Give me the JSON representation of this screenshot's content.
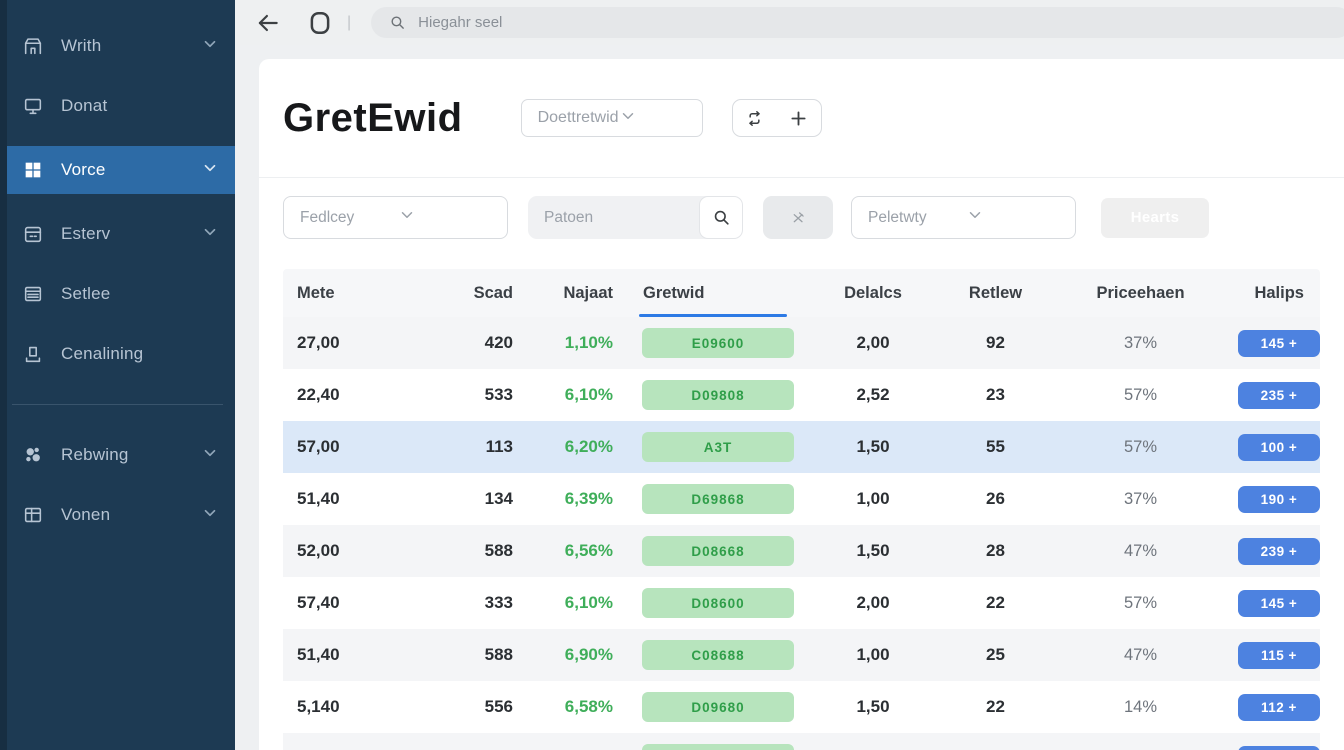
{
  "colors": {
    "sidebar_bg": "#1d3a53",
    "sidebar_active_bg": "#2d6ba6",
    "accent_blue": "#1766df",
    "pill_blue": "#4d82e0",
    "green_text": "#3fae5a",
    "green_badge_bg": "#b7e4bd",
    "selected_row_bg": "#dbe8f8",
    "tab_underline": "#2d7ae5"
  },
  "sidebar": {
    "items": [
      {
        "label": "Writh",
        "icon": "bank-icon",
        "chevron": true,
        "active": false
      },
      {
        "label": "Donat",
        "icon": "monitor-icon",
        "chevron": false,
        "active": false
      },
      {
        "label": "Vorce",
        "icon": "grid-icon",
        "chevron": true,
        "active": true
      },
      {
        "label": "Esterv",
        "icon": "calendar-icon",
        "chevron": true,
        "active": false
      },
      {
        "label": "Setlee",
        "icon": "card-icon",
        "chevron": false,
        "active": false
      },
      {
        "label": "Cenalining",
        "icon": "upload-icon",
        "chevron": false,
        "active": false
      },
      {
        "label": "Rebwing",
        "icon": "scatter-pie-icon",
        "chevron": true,
        "active": false
      },
      {
        "label": "Vonen",
        "icon": "table-icon",
        "chevron": true,
        "active": false
      }
    ]
  },
  "topbar": {
    "search_placeholder": "Hiegahr seel"
  },
  "header": {
    "title": "GretEwid",
    "selector_value": "Doettretwid"
  },
  "filters": {
    "select1_value": "Fedlcey",
    "search_placeholder": "Patoen",
    "select2_value": "Peletwty",
    "action_label": "Hearts"
  },
  "table": {
    "columns": [
      "Mete",
      "Scad",
      "Najaat",
      "Gretwid",
      "Delalcs",
      "Retlew",
      "Priceehaen",
      "Halips"
    ],
    "active_column": "Gretwid",
    "rows": [
      {
        "mete": "27,00",
        "scad": "420",
        "najaat": "1,10%",
        "gretwid": "E09600",
        "delalcs": "2,00",
        "retlew": "92",
        "priceehaen": "37%",
        "halips": "145 +",
        "selected": false
      },
      {
        "mete": "22,40",
        "scad": "533",
        "najaat": "6,10%",
        "gretwid": "D09808",
        "delalcs": "2,52",
        "retlew": "23",
        "priceehaen": "57%",
        "halips": "235 +",
        "selected": false
      },
      {
        "mete": "57,00",
        "scad": "113",
        "najaat": "6,20%",
        "gretwid": "A3T",
        "delalcs": "1,50",
        "retlew": "55",
        "priceehaen": "57%",
        "halips": "100 +",
        "selected": true
      },
      {
        "mete": "51,40",
        "scad": "134",
        "najaat": "6,39%",
        "gretwid": "D69868",
        "delalcs": "1,00",
        "retlew": "26",
        "priceehaen": "37%",
        "halips": "190 +",
        "selected": false
      },
      {
        "mete": "52,00",
        "scad": "588",
        "najaat": "6,56%",
        "gretwid": "D08668",
        "delalcs": "1,50",
        "retlew": "28",
        "priceehaen": "47%",
        "halips": "239 +",
        "selected": false
      },
      {
        "mete": "57,40",
        "scad": "333",
        "najaat": "6,10%",
        "gretwid": "D08600",
        "delalcs": "2,00",
        "retlew": "22",
        "priceehaen": "57%",
        "halips": "145 +",
        "selected": false
      },
      {
        "mete": "51,40",
        "scad": "588",
        "najaat": "6,90%",
        "gretwid": "C08688",
        "delalcs": "1,00",
        "retlew": "25",
        "priceehaen": "47%",
        "halips": "115 +",
        "selected": false
      },
      {
        "mete": "5,140",
        "scad": "556",
        "najaat": "6,58%",
        "gretwid": "D09680",
        "delalcs": "1,50",
        "retlew": "22",
        "priceehaen": "14%",
        "halips": "112 +",
        "selected": false
      },
      {
        "mete": "",
        "scad": "",
        "najaat": "",
        "gretwid": "",
        "delalcs": "",
        "retlew": "",
        "priceehaen": "",
        "halips": "",
        "selected": false
      }
    ]
  }
}
